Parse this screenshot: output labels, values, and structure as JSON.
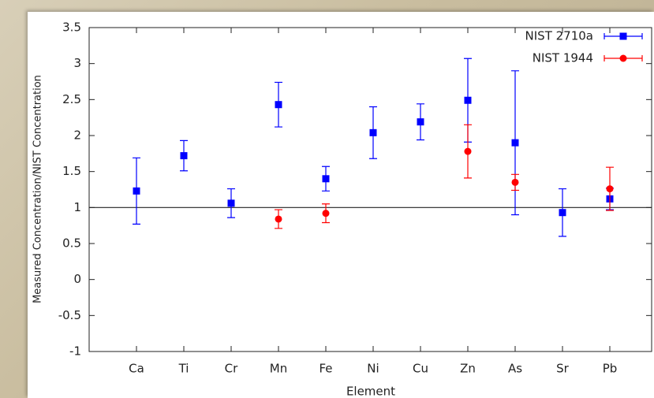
{
  "chart_data": {
    "type": "errorbar",
    "xlabel": "Element",
    "ylabel": "Measured Concentration/NIST Concentration",
    "categories": [
      "Ca",
      "Ti",
      "Cr",
      "Mn",
      "Fe",
      "Ni",
      "Cu",
      "Zn",
      "As",
      "Sr",
      "Pb"
    ],
    "series": [
      {
        "name": "NIST 2710a",
        "color": "#0000ff",
        "marker": "square",
        "values": [
          1.23,
          1.72,
          1.06,
          2.43,
          1.4,
          2.04,
          2.19,
          2.49,
          1.9,
          0.93,
          1.12
        ],
        "errors": [
          0.46,
          0.21,
          0.2,
          0.31,
          0.17,
          0.36,
          0.25,
          0.58,
          1.0,
          0.33,
          0.15
        ]
      },
      {
        "name": "NIST 1944",
        "color": "#ff0000",
        "marker": "circle",
        "values": [
          null,
          null,
          null,
          0.84,
          0.92,
          null,
          null,
          1.78,
          1.35,
          null,
          1.26
        ],
        "errors": [
          null,
          null,
          null,
          0.13,
          0.13,
          null,
          null,
          0.37,
          0.11,
          null,
          0.3
        ]
      }
    ],
    "reference_line": 1,
    "ylim": [
      -1,
      3.5
    ],
    "yticks": [
      -1,
      -0.5,
      0,
      0.5,
      1,
      1.5,
      2,
      2.5,
      3,
      3.5
    ],
    "legend": "top-right"
  }
}
